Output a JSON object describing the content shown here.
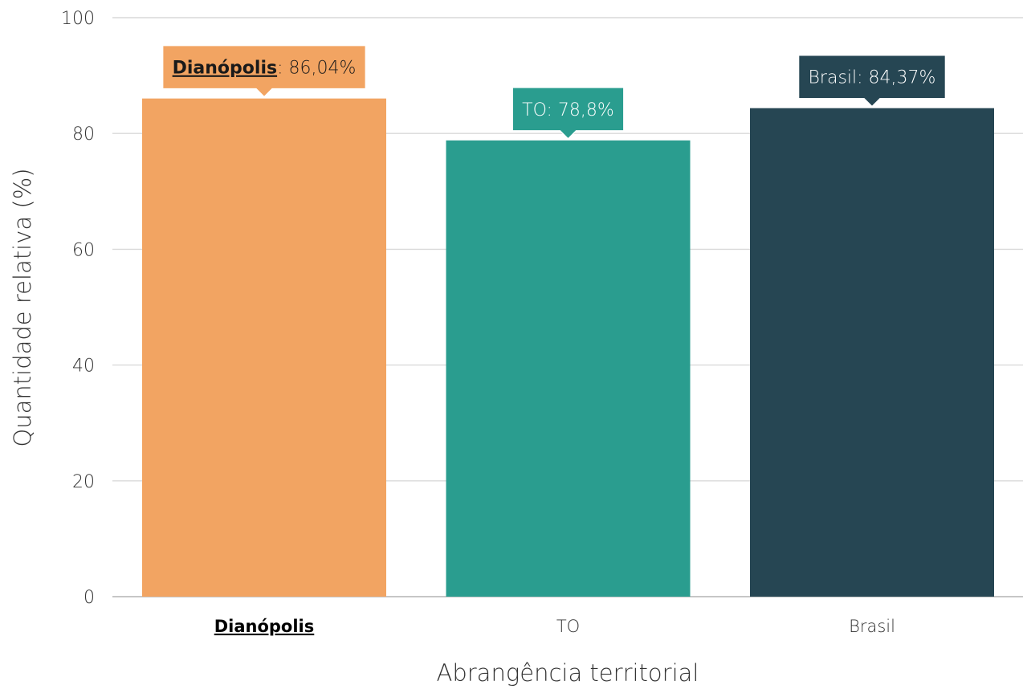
{
  "chart_data": {
    "type": "bar",
    "categories": [
      "Dianópolis",
      "TO",
      "Brasil"
    ],
    "values": [
      86.04,
      78.8,
      84.37
    ],
    "value_labels": [
      "86,04%",
      "78,8%",
      "84,37%"
    ],
    "highlight_category": "Dianópolis",
    "colors": [
      "#F2A462",
      "#2A9D8F",
      "#264653"
    ],
    "xlabel": "Abrangência territorial",
    "ylabel": "Quantidade relativa (%)",
    "ylim": [
      0,
      100
    ],
    "yticks": [
      0,
      20,
      40,
      60,
      80,
      100
    ],
    "grid": true,
    "legend": "none"
  }
}
